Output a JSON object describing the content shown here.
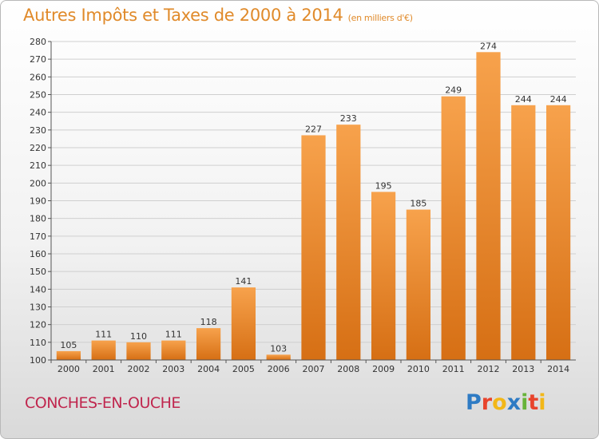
{
  "title": "Autres Impôts et Taxes de 2000 à 2014",
  "unit": "(en milliers d'€)",
  "town": "CONCHES-EN-OUCHE",
  "brand": {
    "letters": [
      "P",
      "r",
      "o",
      "x",
      "i",
      "t",
      "i"
    ],
    "colors": [
      "#2e7bc4",
      "#e8442c",
      "#f2b718",
      "#2e7bc4",
      "#67b33a",
      "#e8442c",
      "#f2b718"
    ]
  },
  "colors": {
    "bar": "#f0922e",
    "bar_dark": "#d36d12",
    "grid": "#cfcfcf"
  },
  "chart_data": {
    "type": "bar",
    "title": "Autres Impôts et Taxes de 2000 à 2014",
    "categories": [
      "2000",
      "2001",
      "2002",
      "2003",
      "2004",
      "2005",
      "2006",
      "2007",
      "2008",
      "2009",
      "2010",
      "2011",
      "2012",
      "2013",
      "2014"
    ],
    "values": [
      105,
      111,
      110,
      111,
      118,
      141,
      103,
      227,
      233,
      195,
      185,
      249,
      274,
      244,
      244
    ],
    "ylim": [
      100,
      280
    ],
    "yticks": [
      100,
      110,
      120,
      130,
      140,
      150,
      160,
      170,
      180,
      190,
      200,
      210,
      220,
      230,
      240,
      250,
      260,
      270,
      280
    ],
    "grid": true,
    "xlabel": "",
    "ylabel": ""
  }
}
